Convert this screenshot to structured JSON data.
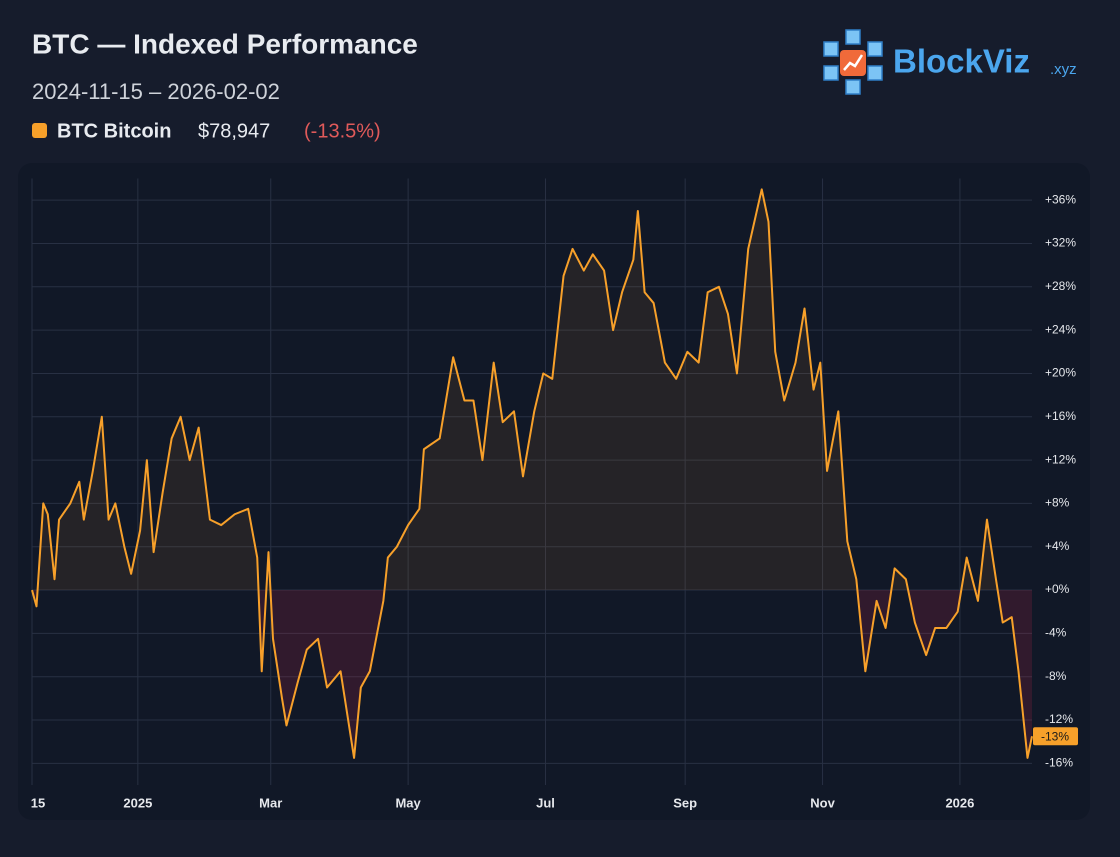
{
  "chart_data": {
    "type": "line",
    "title": "BTC — Indexed Performance",
    "subtitle": "2024-11-15 – 2026-02-02",
    "logo": {
      "name": "BlockViz",
      "suffix": ".xyz"
    },
    "legend_price": "$78,947",
    "legend_change": "(-13.5%)",
    "last_label": "-13%",
    "grid": true,
    "x": [
      "2024-11-15",
      "2024-11-17",
      "2024-11-20",
      "2024-11-22",
      "2024-11-25",
      "2024-11-27",
      "2024-12-02",
      "2024-12-06",
      "2024-12-08",
      "2024-12-12",
      "2024-12-16",
      "2024-12-19",
      "2024-12-22",
      "2024-12-26",
      "2024-12-29",
      "2025-01-02",
      "2025-01-05",
      "2025-01-08",
      "2025-01-12",
      "2025-01-16",
      "2025-01-20",
      "2025-01-24",
      "2025-01-28",
      "2025-02-02",
      "2025-02-07",
      "2025-02-13",
      "2025-02-19",
      "2025-02-23",
      "2025-02-25",
      "2025-02-28",
      "2025-03-02",
      "2025-03-06",
      "2025-03-08",
      "2025-03-13",
      "2025-03-17",
      "2025-03-22",
      "2025-03-26",
      "2025-04-01",
      "2025-04-07",
      "2025-04-10",
      "2025-04-14",
      "2025-04-20",
      "2025-04-22",
      "2025-04-26",
      "2025-05-01",
      "2025-05-06",
      "2025-05-08",
      "2025-05-15",
      "2025-05-21",
      "2025-05-26",
      "2025-05-30",
      "2025-06-03",
      "2025-06-08",
      "2025-06-12",
      "2025-06-17",
      "2025-06-21",
      "2025-06-26",
      "2025-06-30",
      "2025-07-04",
      "2025-07-09",
      "2025-07-13",
      "2025-07-18",
      "2025-07-22",
      "2025-07-27",
      "2025-07-31",
      "2025-08-04",
      "2025-08-09",
      "2025-08-11",
      "2025-08-14",
      "2025-08-18",
      "2025-08-23",
      "2025-08-28",
      "2025-09-02",
      "2025-09-07",
      "2025-09-11",
      "2025-09-16",
      "2025-09-20",
      "2025-09-24",
      "2025-09-29",
      "2025-10-05",
      "2025-10-08",
      "2025-10-11",
      "2025-10-15",
      "2025-10-20",
      "2025-10-24",
      "2025-10-28",
      "2025-10-31",
      "2025-11-03",
      "2025-11-08",
      "2025-11-12",
      "2025-11-16",
      "2025-11-20",
      "2025-11-25",
      "2025-11-29",
      "2025-12-03",
      "2025-12-08",
      "2025-12-12",
      "2025-12-17",
      "2025-12-21",
      "2025-12-26",
      "2025-12-31",
      "2026-01-04",
      "2026-01-09",
      "2026-01-13",
      "2026-01-17",
      "2026-01-20",
      "2026-01-24",
      "2026-01-27",
      "2026-01-31",
      "2026-02-02"
    ],
    "series": [
      {
        "name": "BTC Bitcoin",
        "color": "#f7a02a",
        "values": [
          0,
          -1.5,
          8,
          7,
          1,
          6.5,
          8,
          10,
          6.5,
          11,
          16,
          6.5,
          8,
          4,
          1.5,
          5.5,
          12,
          3.5,
          9,
          14,
          16,
          12,
          15,
          6.5,
          6,
          7,
          7.5,
          3,
          -7.5,
          3.5,
          -4.5,
          -10,
          -12.5,
          -8.5,
          -5.5,
          -4.5,
          -9,
          -7.5,
          -15.5,
          -9,
          -7.5,
          -1,
          3,
          4,
          6,
          7.5,
          13,
          14,
          21.5,
          17.5,
          17.5,
          12,
          21,
          15.5,
          16.5,
          10.5,
          16.5,
          20,
          19.5,
          29,
          31.5,
          29.5,
          31,
          29.5,
          24,
          27.5,
          30.5,
          35,
          27.5,
          26.5,
          21,
          19.5,
          22,
          21,
          27.5,
          28,
          25.5,
          20,
          31.5,
          37,
          34,
          22,
          17.5,
          21,
          26,
          18.5,
          21,
          11,
          16.5,
          4.5,
          1,
          -7.5,
          -1,
          -3.5,
          2,
          1,
          -3,
          -6,
          -3.5,
          -3.5,
          -2,
          3,
          -1,
          6.5,
          1,
          -3,
          -2.5,
          -7.5,
          -15.5,
          -13.5
        ]
      }
    ],
    "xlim": [
      "2024-11-15",
      "2026-02-02"
    ],
    "xticks": [
      {
        "value": "2024-11-15",
        "label": "15"
      },
      {
        "value": "2025-01-01",
        "label": "2025"
      },
      {
        "value": "2025-03-01",
        "label": "Mar"
      },
      {
        "value": "2025-05-01",
        "label": "May"
      },
      {
        "value": "2025-07-01",
        "label": "Jul"
      },
      {
        "value": "2025-09-01",
        "label": "Sep"
      },
      {
        "value": "2025-11-01",
        "label": "Nov"
      },
      {
        "value": "2026-01-01",
        "label": "2026"
      }
    ],
    "ylim": [
      -18,
      38
    ],
    "yticks": [
      {
        "value": -16,
        "label": "-16%"
      },
      {
        "value": -12,
        "label": "-12%"
      },
      {
        "value": -8,
        "label": "-8%"
      },
      {
        "value": -4,
        "label": "-4%"
      },
      {
        "value": 0,
        "label": "+0%"
      },
      {
        "value": 4,
        "label": "+4%"
      },
      {
        "value": 8,
        "label": "+8%"
      },
      {
        "value": 12,
        "label": "+12%"
      },
      {
        "value": 16,
        "label": "+16%"
      },
      {
        "value": 20,
        "label": "+20%"
      },
      {
        "value": 24,
        "label": "+24%"
      },
      {
        "value": 28,
        "label": "+28%"
      },
      {
        "value": 32,
        "label": "+32%"
      },
      {
        "value": 36,
        "label": "+36%"
      }
    ]
  }
}
